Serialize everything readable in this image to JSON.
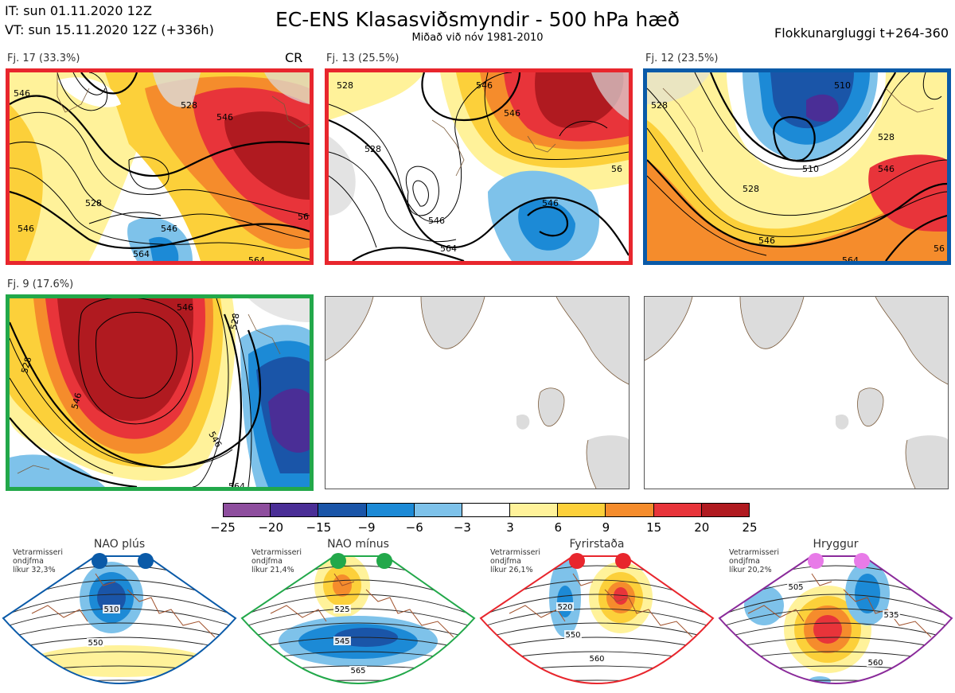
{
  "header": {
    "it_line": "IT: sun 01.11.2020 12Z",
    "vt_line": "VT: sun 15.11.2020 12Z  (+336h)",
    "title": "EC-ENS Klasasviðsmyndir - 500 hPa hæð",
    "subtitle": "Miðað við nóv 1981-2010",
    "window": "Flokkunargluggi t+264-360"
  },
  "colors": {
    "red_frame": "#e8262d",
    "blue_frame": "#0a5aa8",
    "green_frame": "#22a84a",
    "purple_frame": "#8a2a9a"
  },
  "panels": [
    {
      "label": "Fj. 17 (33.3%)",
      "tag": "CR",
      "frame": "red",
      "contours": [
        "546",
        "528",
        "546",
        "528",
        "546",
        "546",
        "564",
        "564",
        "56"
      ]
    },
    {
      "label": "Fj. 13 (25.5%)",
      "frame": "red",
      "contours": [
        "528",
        "546",
        "528",
        "546",
        "546",
        "546",
        "564",
        "56"
      ]
    },
    {
      "label": "Fj. 12 (23.5%)",
      "frame": "blue",
      "contours": [
        "510",
        "528",
        "510",
        "528",
        "546",
        "528",
        "546",
        "564",
        "56"
      ]
    },
    {
      "label": "Fj. 9 (17.6%)",
      "frame": "green",
      "contours": [
        "528",
        "546",
        "528",
        "546",
        "546",
        "564"
      ]
    }
  ],
  "colorbar": {
    "ticks": [
      "−25",
      "−20",
      "−15",
      "−9",
      "−6",
      "−3",
      "3",
      "6",
      "9",
      "15",
      "20",
      "25"
    ],
    "colors": [
      "#8e4e9e",
      "#4a2e96",
      "#1a55a8",
      "#1c8ad6",
      "#7ec2ea",
      "#ffffff",
      "#fff29a",
      "#fcd03a",
      "#f58c2c",
      "#e8343a",
      "#b01a20"
    ]
  },
  "regimes": [
    {
      "name": "NAO plús",
      "note": [
        "Vetrarmisseri",
        "ondjfma",
        "líkur 32,3%"
      ],
      "dot_color": "#0a5aa8",
      "frame": "#0a5aa8",
      "contours": [
        "510",
        "550"
      ]
    },
    {
      "name": "NAO mínus",
      "note": [
        "Vetrarmisseri",
        "ondjfma",
        "líkur 21,4%"
      ],
      "dot_color": "#22a84a",
      "frame": "#22a84a",
      "contours": [
        "525",
        "545",
        "565"
      ]
    },
    {
      "name": "Fyrirstaða",
      "note": [
        "Vetrarmisseri",
        "ondjfma",
        "líkur 26,1%"
      ],
      "dot_color": "#e8262d",
      "frame": "#e8262d",
      "contours": [
        "520",
        "550",
        "560"
      ]
    },
    {
      "name": "Hryggur",
      "note": [
        "Vetrarmisseri",
        "ondjfma",
        "líkur 20,2%"
      ],
      "dot_color": "#e87be8",
      "frame": "#8a2a9a",
      "contours": [
        "505",
        "535",
        "560"
      ]
    }
  ]
}
